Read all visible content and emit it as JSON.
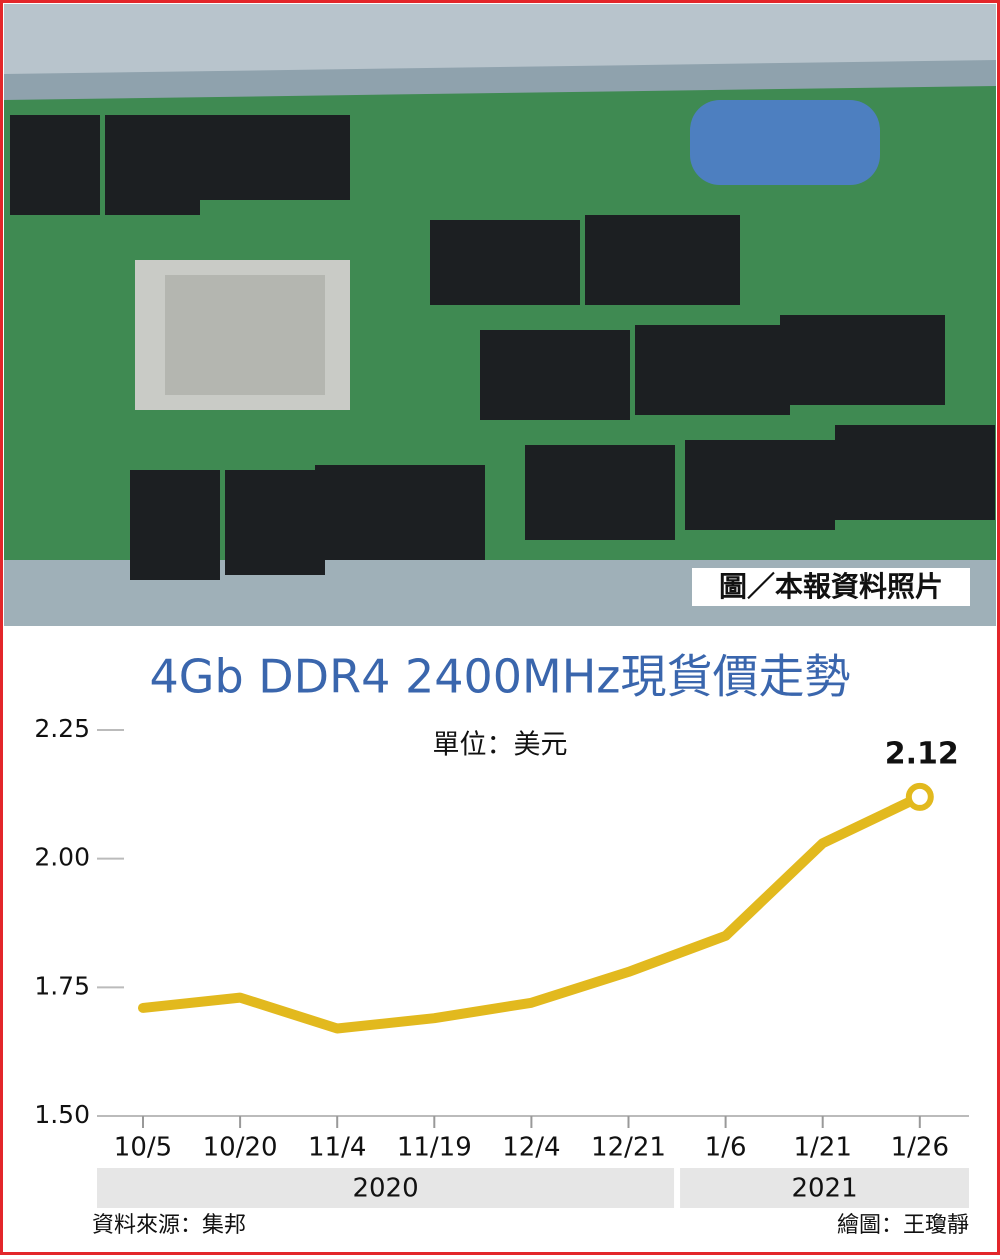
{
  "photo_caption": "圖／本報資料照片",
  "chart_data": {
    "type": "line",
    "title": "4Gb DDR4 2400MHz現貨價走勢",
    "subtitle": "單位：美元",
    "categories": [
      "10/5",
      "10/20",
      "11/4",
      "11/19",
      "12/4",
      "12/21",
      "1/6",
      "1/21",
      "1/26"
    ],
    "x_groups": [
      "2020",
      "2021"
    ],
    "values": [
      1.71,
      1.73,
      1.67,
      1.69,
      1.72,
      1.78,
      1.85,
      2.03,
      2.12
    ],
    "color": "#e2b91e",
    "ylim": [
      1.5,
      2.25
    ],
    "yticks": [
      {
        "value": 1.5,
        "label": "1.50"
      },
      1.75,
      {
        "value": 2,
        "label": "2.00"
      },
      2.25
    ],
    "source": "資料來源：集邦",
    "credit": "繪圖：王瓊靜"
  }
}
